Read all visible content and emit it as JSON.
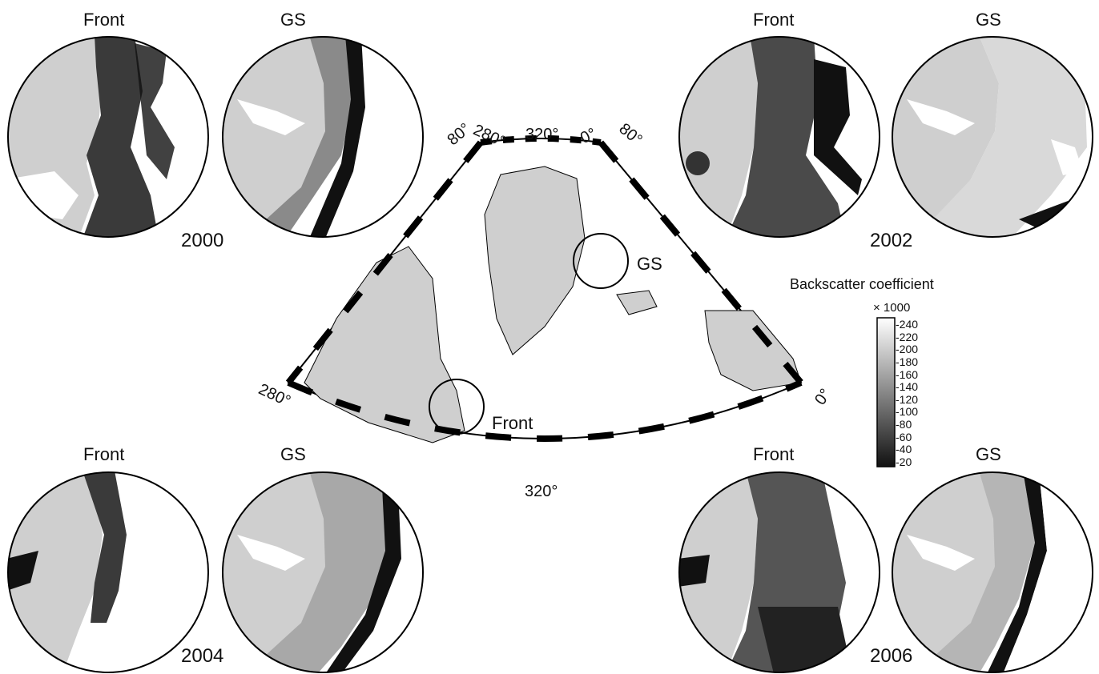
{
  "panels": [
    {
      "key": "2000",
      "year": "2000",
      "front_label": "Front",
      "gs_label": "GS"
    },
    {
      "key": "2002",
      "year": "2002",
      "front_label": "Front",
      "gs_label": "GS"
    },
    {
      "key": "2004",
      "year": "2004",
      "front_label": "Front",
      "gs_label": "GS"
    },
    {
      "key": "2006",
      "year": "2006",
      "front_label": "Front",
      "gs_label": "GS"
    }
  ],
  "map": {
    "top_labels": [
      "80°",
      "280°",
      "320°",
      "0°",
      "80°"
    ],
    "side_labels": [
      "280°",
      "0°"
    ],
    "bottom_label": "320°",
    "circle_labels": [
      "GS",
      "Front"
    ]
  },
  "colorbar": {
    "title": "Backscatter coefficient",
    "scale": "× 1000",
    "ticks": [
      "240",
      "220",
      "200",
      "180",
      "160",
      "140",
      "120",
      "100",
      "80",
      "60",
      "40",
      "20"
    ]
  }
}
